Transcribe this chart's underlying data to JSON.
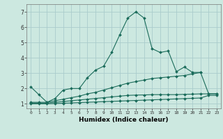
{
  "title": "",
  "xlabel": "Humidex (Indice chaleur)",
  "ylabel": "",
  "background_color": "#cce8e0",
  "grid_color": "#aacccc",
  "line_color": "#1a6b5a",
  "xlim": [
    -0.5,
    23.5
  ],
  "ylim": [
    0.7,
    7.5
  ],
  "yticks": [
    1,
    2,
    3,
    4,
    5,
    6,
    7
  ],
  "xticks": [
    0,
    1,
    2,
    3,
    4,
    5,
    6,
    7,
    8,
    9,
    10,
    11,
    12,
    13,
    14,
    15,
    16,
    17,
    18,
    19,
    20,
    21,
    22,
    23
  ],
  "series": [
    {
      "x": [
        0,
        1,
        2,
        3,
        4,
        5,
        6,
        7,
        8,
        9,
        10,
        11,
        12,
        13,
        14,
        15,
        16,
        17,
        18,
        19,
        20,
        21
      ],
      "y": [
        2.1,
        1.6,
        1.1,
        1.35,
        1.9,
        2.0,
        2.0,
        2.7,
        3.2,
        3.45,
        4.35,
        5.5,
        6.6,
        7.0,
        6.6,
        4.6,
        4.35,
        4.45,
        3.1,
        3.4,
        3.05,
        3.05
      ]
    },
    {
      "x": [
        0,
        1,
        2,
        3,
        4,
        5,
        6,
        7,
        8,
        9,
        10,
        11,
        12,
        13,
        14,
        15,
        16,
        17,
        18,
        19,
        20,
        21,
        22,
        23
      ],
      "y": [
        1.1,
        1.1,
        1.1,
        1.2,
        1.3,
        1.4,
        1.5,
        1.65,
        1.75,
        1.9,
        2.05,
        2.2,
        2.35,
        2.45,
        2.55,
        2.65,
        2.7,
        2.75,
        2.8,
        2.85,
        2.95,
        3.05,
        1.65,
        1.65
      ]
    },
    {
      "x": [
        0,
        1,
        2,
        3,
        4,
        5,
        6,
        7,
        8,
        9,
        10,
        11,
        12,
        13,
        14,
        15,
        16,
        17,
        18,
        19,
        20,
        21,
        22,
        23
      ],
      "y": [
        1.05,
        1.05,
        1.05,
        1.1,
        1.15,
        1.2,
        1.25,
        1.3,
        1.35,
        1.4,
        1.45,
        1.5,
        1.55,
        1.57,
        1.58,
        1.6,
        1.6,
        1.6,
        1.6,
        1.62,
        1.63,
        1.65,
        1.65,
        1.65
      ]
    },
    {
      "x": [
        0,
        1,
        2,
        3,
        4,
        5,
        6,
        7,
        8,
        9,
        10,
        11,
        12,
        13,
        14,
        15,
        16,
        17,
        18,
        19,
        20,
        21,
        22,
        23
      ],
      "y": [
        1.0,
        1.0,
        1.0,
        1.02,
        1.04,
        1.06,
        1.08,
        1.1,
        1.12,
        1.14,
        1.16,
        1.18,
        1.2,
        1.22,
        1.24,
        1.26,
        1.28,
        1.3,
        1.32,
        1.34,
        1.36,
        1.38,
        1.55,
        1.55
      ]
    }
  ]
}
